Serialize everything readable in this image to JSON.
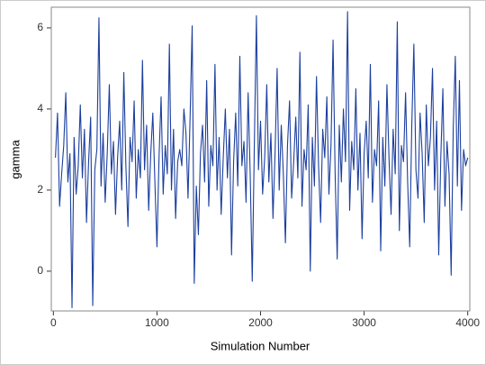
{
  "chart_data": {
    "type": "line",
    "xlabel": "Simulation Number",
    "ylabel": "gamma",
    "color": "#1c3f9e",
    "xlim": [
      -20,
      4020
    ],
    "ylim": [
      -0.98,
      6.51
    ],
    "xticks": [
      0,
      1000,
      2000,
      3000,
      4000
    ],
    "yticks": [
      0,
      2,
      4,
      6
    ],
    "grid": false,
    "x": [
      20,
      40,
      60,
      80,
      100,
      120,
      140,
      160,
      180,
      200,
      220,
      240,
      260,
      280,
      300,
      320,
      340,
      360,
      380,
      400,
      420,
      440,
      460,
      480,
      500,
      520,
      540,
      560,
      580,
      600,
      620,
      640,
      660,
      680,
      700,
      720,
      740,
      760,
      780,
      800,
      820,
      840,
      860,
      880,
      900,
      920,
      940,
      960,
      980,
      1000,
      1020,
      1040,
      1060,
      1080,
      1100,
      1120,
      1140,
      1160,
      1180,
      1200,
      1220,
      1240,
      1260,
      1280,
      1300,
      1320,
      1340,
      1360,
      1380,
      1400,
      1420,
      1440,
      1460,
      1480,
      1500,
      1520,
      1540,
      1560,
      1580,
      1600,
      1620,
      1640,
      1660,
      1680,
      1700,
      1720,
      1740,
      1760,
      1780,
      1800,
      1820,
      1840,
      1860,
      1880,
      1900,
      1920,
      1940,
      1960,
      1980,
      2000,
      2020,
      2040,
      2060,
      2080,
      2100,
      2120,
      2140,
      2160,
      2180,
      2200,
      2220,
      2240,
      2260,
      2280,
      2300,
      2320,
      2340,
      2360,
      2380,
      2400,
      2420,
      2440,
      2460,
      2480,
      2500,
      2520,
      2540,
      2560,
      2580,
      2600,
      2620,
      2640,
      2660,
      2680,
      2700,
      2720,
      2740,
      2760,
      2780,
      2800,
      2820,
      2840,
      2860,
      2880,
      2900,
      2920,
      2940,
      2960,
      2980,
      3000,
      3020,
      3040,
      3060,
      3080,
      3100,
      3120,
      3140,
      3160,
      3180,
      3200,
      3220,
      3240,
      3260,
      3280,
      3300,
      3320,
      3340,
      3360,
      3380,
      3400,
      3420,
      3440,
      3460,
      3480,
      3500,
      3520,
      3540,
      3560,
      3580,
      3600,
      3620,
      3640,
      3660,
      3680,
      3700,
      3720,
      3740,
      3760,
      3780,
      3800,
      3820,
      3840,
      3860,
      3880,
      3900,
      3920,
      3940,
      3960,
      3980,
      4000
    ],
    "values": [
      2.8,
      3.9,
      1.6,
      2.4,
      3.1,
      4.4,
      2.2,
      2.9,
      -0.9,
      3.3,
      1.9,
      2.6,
      4.1,
      2.3,
      3.5,
      1.2,
      2.7,
      3.8,
      -0.85,
      2.5,
      3.0,
      6.25,
      2.1,
      3.4,
      1.7,
      2.9,
      4.6,
      2.4,
      3.2,
      1.4,
      2.8,
      3.7,
      2.0,
      4.9,
      2.6,
      1.1,
      3.3,
      2.7,
      4.2,
      1.8,
      3.0,
      2.3,
      5.2,
      2.5,
      3.6,
      1.5,
      2.9,
      3.9,
      2.2,
      0.6,
      2.8,
      4.3,
      1.9,
      3.1,
      2.4,
      5.6,
      2.0,
      3.5,
      1.3,
      2.7,
      3.0,
      2.6,
      4.0,
      3.4,
      1.8,
      3.8,
      6.05,
      -0.3,
      2.1,
      0.9,
      2.9,
      3.6,
      2.2,
      4.7,
      1.6,
      3.1,
      2.6,
      5.1,
      2.0,
      3.3,
      1.4,
      2.8,
      4.0,
      2.3,
      3.5,
      0.4,
      2.7,
      3.9,
      2.1,
      5.3,
      2.6,
      3.2,
      1.7,
      4.4,
      2.4,
      -0.25,
      3.1,
      6.3,
      2.5,
      3.7,
      1.9,
      2.8,
      4.6,
      2.2,
      3.4,
      1.3,
      2.9,
      5.0,
      2.0,
      3.6,
      2.4,
      0.7,
      3.1,
      4.2,
      1.8,
      2.7,
      3.8,
      2.3,
      5.4,
      1.6,
      3.0,
      2.5,
      4.1,
      0.0,
      3.3,
      2.1,
      4.8,
      2.6,
      1.2,
      3.5,
      2.8,
      4.3,
      1.9,
      3.1,
      5.7,
      2.4,
      0.3,
      3.6,
      2.2,
      4.0,
      2.7,
      6.4,
      1.5,
      3.2,
      2.5,
      4.5,
      2.0,
      3.4,
      0.8,
      2.9,
      3.7,
      2.3,
      5.1,
      1.7,
      3.0,
      2.6,
      4.2,
      0.5,
      3.3,
      2.1,
      4.6,
      2.8,
      1.4,
      3.5,
      2.4,
      6.15,
      1.0,
      3.1,
      2.7,
      4.4,
      2.2,
      0.6,
      3.6,
      5.6,
      2.5,
      1.8,
      3.9,
      2.9,
      1.2,
      4.1,
      2.6,
      3.3,
      5.0,
      2.0,
      3.7,
      0.4,
      2.8,
      4.5,
      1.6,
      3.2,
      2.4,
      -0.1,
      3.5,
      5.3,
      2.1,
      4.7,
      1.5,
      3.0,
      2.6,
      2.8
    ]
  }
}
